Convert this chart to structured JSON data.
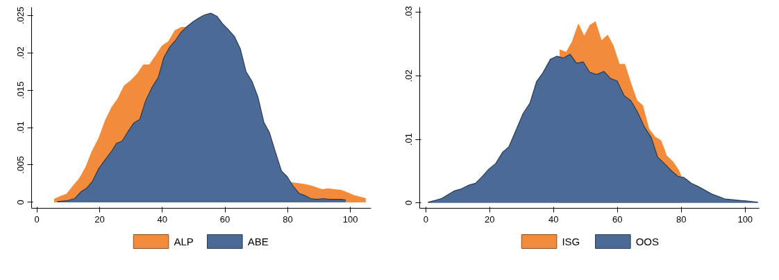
{
  "chart_data": [
    {
      "type": "area",
      "legend": "bottom",
      "grid": false,
      "xlim": [
        -1.7,
        106.6
      ],
      "ylim": [
        -0.0008,
        0.0261
      ],
      "xticks": [
        0,
        20,
        40,
        60,
        80,
        100
      ],
      "yticks": [
        0,
        {
          "value": 0.005,
          "label": ".005"
        },
        {
          "value": 0.01,
          "label": ".01"
        },
        {
          "value": 0.015,
          "label": ".015"
        },
        {
          "value": 0.02,
          "label": ".02"
        },
        {
          "value": 0.025,
          "label": ".025"
        }
      ],
      "series": [
        {
          "name": "ALP",
          "color": "#f28b3c",
          "x": [
            5.5,
            7.6,
            9.5,
            11.6,
            13.6,
            15.6,
            17.7,
            19.7,
            21.8,
            23.9,
            25.9,
            27.9,
            30,
            31.9,
            34,
            35.9,
            37.9,
            39.9,
            42,
            44.1,
            46.1,
            47.6,
            64,
            80,
            83.5,
            85.4,
            87.3,
            89.5,
            91,
            92.9,
            94.8,
            97,
            98.9,
            101.1,
            103,
            104.9
          ],
          "values": [
            0.0004,
            0.0008,
            0.0011,
            0.0022,
            0.0032,
            0.0047,
            0.0069,
            0.0085,
            0.0109,
            0.0127,
            0.0139,
            0.0156,
            0.0163,
            0.0171,
            0.0184,
            0.0184,
            0.0196,
            0.0209,
            0.0215,
            0.023,
            0.0234,
            0.0234,
            null,
            0.0027,
            0.0025,
            0.0024,
            0.0022,
            0.0019,
            0.0017,
            0.0018,
            0.0017,
            0.0016,
            0.0013,
            0.0009,
            0.0007,
            0.0005
          ]
        },
        {
          "name": "ABE",
          "color": "#4b6b96",
          "x": [
            6.5,
            9.5,
            12.1,
            14,
            15.9,
            17.7,
            19.7,
            21.8,
            23.9,
            25.4,
            27.2,
            29.1,
            30.9,
            32.8,
            34.6,
            36.6,
            38.7,
            40.5,
            42.4,
            44.1,
            45.9,
            47.8,
            49.9,
            51.8,
            53.6,
            55.5,
            57.4,
            59.2,
            61.1,
            63,
            64.9,
            66.7,
            68.6,
            70.5,
            72.4,
            74.2,
            76.1,
            78,
            79.9,
            81.8,
            83.6,
            85.5,
            87.3,
            89.5,
            91.4,
            93.3,
            95.1,
            97,
            98.5
          ],
          "values": [
            0.0001,
            0.0002,
            0.0005,
            0.0014,
            0.0019,
            0.0028,
            0.0045,
            0.0057,
            0.0069,
            0.0079,
            0.0082,
            0.0095,
            0.0106,
            0.0111,
            0.0135,
            0.0153,
            0.0167,
            0.0194,
            0.0208,
            0.0216,
            0.0227,
            0.0235,
            0.0242,
            0.0247,
            0.0251,
            0.0253,
            0.0249,
            0.0239,
            0.0231,
            0.0222,
            0.0205,
            0.0175,
            0.0162,
            0.0141,
            0.0107,
            0.0093,
            0.0067,
            0.0042,
            0.0034,
            0.0021,
            0.0012,
            0.0009,
            0.0005,
            0.0004,
            0.0005,
            0.0004,
            0.0004,
            0.0004,
            0.0003
          ]
        }
      ]
    },
    {
      "type": "area",
      "legend": "bottom",
      "grid": false,
      "xlim": [
        -1.9,
        104.4
      ],
      "ylim": [
        -0.00085,
        0.0308
      ],
      "xticks": [
        0,
        20,
        40,
        60,
        80,
        100
      ],
      "yticks": [
        0,
        {
          "value": 0.01,
          "label": ".01"
        },
        {
          "value": 0.02,
          "label": ".02"
        },
        {
          "value": 0.03,
          "label": ".03"
        }
      ],
      "series": [
        {
          "name": "ISG",
          "color": "#f28b3c",
          "x": [
            41.9,
            44,
            45.9,
            47.8,
            49.6,
            51.5,
            53.1,
            55,
            56.9,
            58.7,
            60.6,
            62.3,
            64.2,
            66.1,
            67.9,
            69.8,
            71.7,
            73.6,
            75.4,
            77.3,
            79.2,
            79.9
          ],
          "values": [
            0.0241,
            0.0237,
            0.0254,
            0.0281,
            0.0262,
            0.028,
            0.0285,
            0.0255,
            0.0264,
            0.0247,
            0.0218,
            0.0218,
            0.0188,
            0.0161,
            0.0153,
            0.0117,
            0.0104,
            0.0098,
            0.0074,
            0.0065,
            0.0051,
            0.0042
          ]
        },
        {
          "name": "OOS",
          "color": "#4b6b96",
          "x": [
            0.7,
            3,
            5,
            7,
            9,
            11.1,
            13.5,
            15.6,
            17.6,
            19.7,
            21.9,
            24.1,
            26,
            28.3,
            30.5,
            32.6,
            34.7,
            36.7,
            39,
            41.1,
            43.1,
            45.2,
            47.2,
            49.3,
            51.3,
            53.5,
            55.8,
            57.8,
            59.9,
            62.1,
            64.2,
            66.2,
            68.5,
            70.6,
            72.6,
            74.7,
            76.8,
            78.9,
            80.8,
            83.1,
            85.2,
            87.4,
            89.5,
            91.7,
            93.7,
            96,
            98,
            100.3,
            104
          ],
          "values": [
            0.0001,
            0.0004,
            0.0007,
            0.0013,
            0.0019,
            0.0022,
            0.0028,
            0.0031,
            0.0041,
            0.0053,
            0.0062,
            0.008,
            0.0088,
            0.0115,
            0.0141,
            0.0157,
            0.0191,
            0.0205,
            0.0226,
            0.0231,
            0.0228,
            0.0234,
            0.022,
            0.0222,
            0.0206,
            0.0202,
            0.0207,
            0.0196,
            0.0192,
            0.0169,
            0.0161,
            0.0144,
            0.0119,
            0.0103,
            0.0072,
            0.0062,
            0.0051,
            0.0042,
            0.004,
            0.0031,
            0.0026,
            0.002,
            0.0014,
            0.001,
            0.0006,
            0.0005,
            0.0004,
            0.0003,
            0.0001
          ]
        }
      ]
    }
  ]
}
